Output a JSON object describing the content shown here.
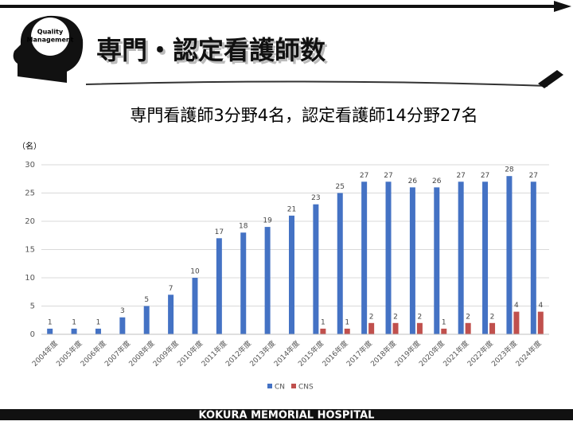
{
  "slide": {
    "title": "専門・認定看護師数",
    "logo": [
      "Quality",
      "Management"
    ],
    "footer": "KOKURA MEMORIAL HOSPITAL"
  },
  "chart_data": {
    "type": "bar",
    "title": "専門看護師3分野4名，認定看護師14分野27名",
    "ylabel": "（名）",
    "categories": [
      "2004年度",
      "2005年度",
      "2006年度",
      "2007年度",
      "2008年度",
      "2009年度",
      "2010年度",
      "2011年度",
      "2012年度",
      "2013年度",
      "2014年度",
      "2015年度",
      "2016年度",
      "2017年度",
      "2018年度",
      "2019年度",
      "2020年度",
      "2021年度",
      "2022年度",
      "2023年度",
      "2024年度"
    ],
    "series": [
      {
        "name": "CN",
        "color": "#4472c4",
        "values": [
          1,
          1,
          1,
          3,
          5,
          7,
          10,
          17,
          18,
          19,
          21,
          23,
          25,
          27,
          27,
          26,
          26,
          27,
          27,
          28,
          27
        ]
      },
      {
        "name": "CNS",
        "color": "#c0504d",
        "values": [
          null,
          null,
          null,
          null,
          null,
          null,
          null,
          null,
          null,
          null,
          null,
          1,
          1,
          2,
          2,
          2,
          1,
          2,
          2,
          4,
          4
        ]
      }
    ],
    "ylim": [
      0,
      30
    ],
    "yticks": [
      0,
      5,
      10,
      15,
      20,
      25,
      30
    ],
    "grid": true,
    "legend": "bottom"
  }
}
